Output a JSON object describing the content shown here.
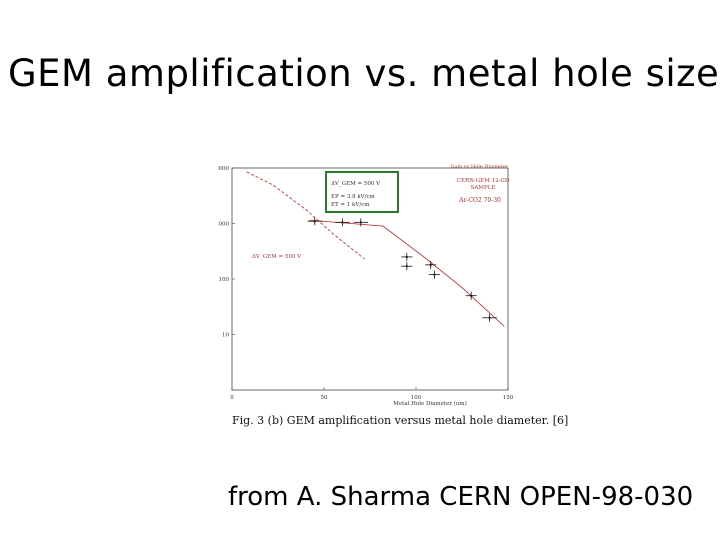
{
  "slide": {
    "title": "GEM amplification vs. metal hole size",
    "caption": "Fig. 3 (b) GEM amplification versus metal hole diameter. [6]",
    "source": "from A. Sharma CERN OPEN-98-030"
  },
  "chart_data": {
    "type": "scatter",
    "title": "",
    "top_right_text": "Gain vs Hole Diameter",
    "xlabel": "Metal Hole Diameter (um)",
    "ylabel": "",
    "xlim": [
      0,
      150
    ],
    "ylim": [
      1,
      10000
    ],
    "y_scale": "log",
    "x_ticks": [
      "0",
      "50",
      "100",
      "150"
    ],
    "y_ticks": [
      "10",
      "100",
      "1000",
      "10000"
    ],
    "legend_box_lines": [
      "ΔV_GEM = 500 V",
      "EP = 3.8 kV/cm",
      "ET = 1 kV/cm"
    ],
    "right_text_lines": [
      "CERN-GEM 12-GD",
      "SAMPLE",
      "Ar-CO2 70-30"
    ],
    "annotation": "ΔV_GEM = 500 V",
    "series": [
      {
        "x": [
          45,
          60,
          70,
          95,
          95,
          108,
          110,
          130,
          140
        ],
        "y": [
          1100,
          1050,
          1050,
          250,
          170,
          180,
          120,
          50,
          20
        ],
        "x_err": [
          4,
          4,
          4,
          3,
          3,
          3,
          3,
          3,
          4
        ]
      }
    ],
    "fit_lines": [
      {
        "style": "solid",
        "color": "#c02020",
        "x": [
          42,
          82,
          103,
          125,
          148
        ],
        "y": [
          1150,
          900,
          270,
          70,
          14
        ]
      },
      {
        "style": "dashed",
        "color": "#c02020",
        "x": [
          8,
          22,
          40,
          55,
          72
        ],
        "y": [
          8500,
          5000,
          1800,
          650,
          230
        ]
      }
    ],
    "grid": false,
    "legend_position": "top-left"
  }
}
